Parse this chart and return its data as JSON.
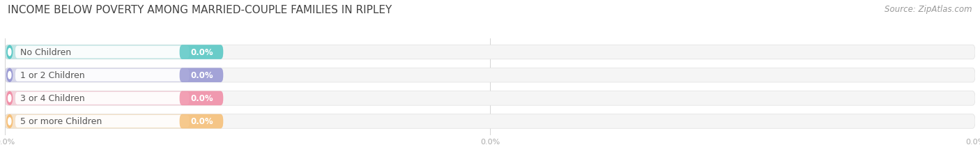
{
  "title": "INCOME BELOW POVERTY AMONG MARRIED-COUPLE FAMILIES IN RIPLEY",
  "source": "Source: ZipAtlas.com",
  "categories": [
    "No Children",
    "1 or 2 Children",
    "3 or 4 Children",
    "5 or more Children"
  ],
  "values": [
    0.0,
    0.0,
    0.0,
    0.0
  ],
  "bar_colors": [
    "#5bc8c5",
    "#9b9bd4",
    "#f090a8",
    "#f5c07a"
  ],
  "background_color": "#ffffff",
  "bar_bg_color": "#f0f0f0",
  "title_fontsize": 11,
  "source_fontsize": 8.5,
  "label_fontsize": 9,
  "tick_label_color": "#aaaaaa",
  "category_color": "#555555",
  "value_color_in_bar": "#ffffff"
}
